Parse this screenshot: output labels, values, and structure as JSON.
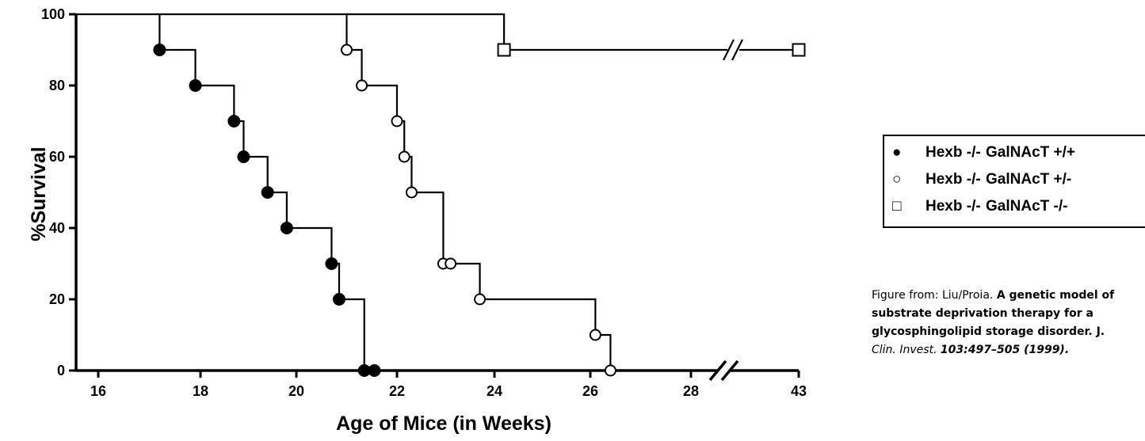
{
  "chart_data": {
    "type": "line",
    "step": true,
    "xlabel": "Age of Mice (in Weeks)",
    "ylabel": "%Survival",
    "ylim": [
      0,
      100
    ],
    "x_ticks": [
      "16",
      "18",
      "20",
      "22",
      "24",
      "26",
      "28",
      "43"
    ],
    "y_ticks": [
      "0",
      "20",
      "40",
      "60",
      "80",
      "100"
    ],
    "x_axis_break": "between 28 and 43",
    "grid": false,
    "legend_position": "right",
    "series": [
      {
        "name": "Hexb -/- GalNAcT +/+",
        "marker": "filled-circle",
        "points": [
          {
            "x": 17.2,
            "y": 90
          },
          {
            "x": 17.9,
            "y": 80
          },
          {
            "x": 18.7,
            "y": 70
          },
          {
            "x": 18.9,
            "y": 60
          },
          {
            "x": 19.4,
            "y": 50
          },
          {
            "x": 19.8,
            "y": 40
          },
          {
            "x": 20.7,
            "y": 30
          },
          {
            "x": 20.85,
            "y": 20
          },
          {
            "x": 21.35,
            "y": 0
          },
          {
            "x": 21.55,
            "y": 0
          }
        ]
      },
      {
        "name": "Hexb -/- GalNAcT +/-",
        "marker": "open-circle",
        "points": [
          {
            "x": 21.0,
            "y": 90
          },
          {
            "x": 21.3,
            "y": 80
          },
          {
            "x": 22.0,
            "y": 70
          },
          {
            "x": 22.15,
            "y": 60
          },
          {
            "x": 22.3,
            "y": 50
          },
          {
            "x": 22.95,
            "y": 30
          },
          {
            "x": 23.1,
            "y": 30
          },
          {
            "x": 23.7,
            "y": 20
          },
          {
            "x": 26.1,
            "y": 10
          },
          {
            "x": 26.4,
            "y": 0
          }
        ]
      },
      {
        "name": "Hexb -/- GalNAcT -/-",
        "marker": "open-square",
        "points": [
          {
            "x": 24.2,
            "y": 90
          },
          {
            "x": 43,
            "y": 90
          }
        ]
      }
    ]
  },
  "legend": {
    "items": [
      {
        "marker": "●",
        "genotype": "Hexb -/-",
        "variant": "GalNAcT +/+"
      },
      {
        "marker": "○",
        "genotype": "Hexb -/-",
        "variant": "GalNAcT +/-"
      },
      {
        "marker": "□",
        "genotype": "Hexb -/-",
        "variant": "GalNAcT -/-"
      }
    ]
  },
  "caption": {
    "prefix": "Figure from: Liu/Proia. ",
    "title_bold_1": "A genetic model of",
    "title_bold_2": "substrate deprivation therapy for a",
    "title_bold_3": "glycosphingolipid storage disorder. J.",
    "journal": "Clin. Invest. ",
    "ref_bold": "103:497–505 (1999)."
  }
}
